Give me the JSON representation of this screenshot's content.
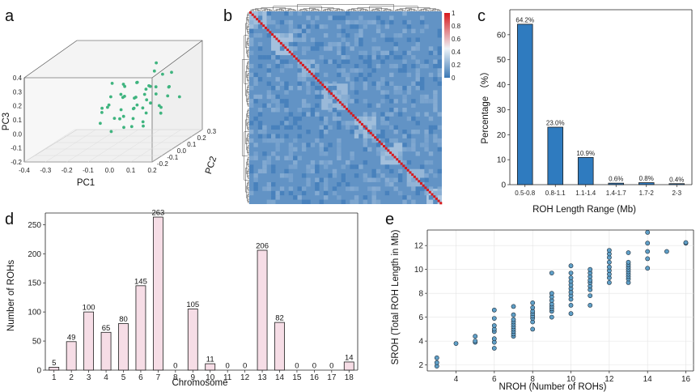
{
  "colors": {
    "pca_point": "#3fb47f",
    "bar_c": "#2f7bbf",
    "bar_d": "#f6dde6",
    "scatter_e": "#5f9fc7",
    "heat_low": "#3a78b6",
    "heat_mid": "#eef3f8",
    "heat_high": "#d7191c"
  },
  "panels": {
    "a": {
      "letter": "a"
    },
    "b": {
      "letter": "b"
    },
    "c": {
      "letter": "c"
    },
    "d": {
      "letter": "d"
    },
    "e": {
      "letter": "e"
    }
  },
  "chart_data": [
    {
      "panel": "a",
      "type": "scatter",
      "projection": "3d",
      "xlabel": "PC1",
      "ylabel": "PC2",
      "zlabel": "PC3",
      "x_ticks": [
        "-0.4",
        "-0.3",
        "-0.2",
        "-0.1",
        "0.0",
        "0.1",
        "0.2"
      ],
      "y_ticks": [
        "-0.2",
        "-0.1",
        "0.0",
        "0.1",
        "0.2",
        "0.3"
      ],
      "z_ticks": [
        "-0.2",
        "-0.1",
        "0.0",
        "0.1",
        "0.2",
        "0.3",
        "0.4"
      ],
      "xlim": [
        -0.4,
        0.2
      ],
      "ylim": [
        -0.2,
        0.3
      ],
      "zlim": [
        -0.2,
        0.4
      ],
      "points": [
        [
          -0.08,
          -0.05,
          0.12
        ],
        [
          -0.05,
          0.02,
          0.18
        ],
        [
          0.01,
          0.05,
          0.25
        ],
        [
          0.03,
          -0.02,
          0.1
        ],
        [
          -0.02,
          0.08,
          0.05
        ],
        [
          0.05,
          0.1,
          0.2
        ],
        [
          0.08,
          0.0,
          0.15
        ],
        [
          -0.1,
          -0.08,
          0.02
        ],
        [
          0.02,
          -0.1,
          0.0
        ],
        [
          0.06,
          0.12,
          0.3
        ],
        [
          -0.04,
          0.0,
          0.08
        ],
        [
          0.0,
          0.15,
          0.12
        ],
        [
          0.1,
          0.05,
          0.22
        ],
        [
          0.04,
          -0.05,
          0.04
        ],
        [
          -0.06,
          0.06,
          0.14
        ],
        [
          0.07,
          0.18,
          0.25
        ],
        [
          -0.12,
          -0.02,
          0.1
        ],
        [
          0.11,
          0.08,
          0.06
        ],
        [
          0.02,
          0.02,
          0.16
        ],
        [
          -0.03,
          -0.12,
          -0.02
        ],
        [
          0.09,
          -0.06,
          0.12
        ],
        [
          -0.07,
          0.1,
          0.2
        ],
        [
          0.05,
          0.03,
          -0.05
        ],
        [
          0.12,
          0.14,
          0.18
        ],
        [
          -0.01,
          -0.04,
          0.28
        ],
        [
          0.03,
          0.2,
          0.1
        ],
        [
          -0.09,
          0.04,
          0.0
        ],
        [
          0.06,
          -0.08,
          0.2
        ],
        [
          0.13,
          0.02,
          0.1
        ],
        [
          -0.02,
          0.12,
          0.22
        ],
        [
          0.0,
          -0.06,
          0.06
        ],
        [
          0.08,
          0.22,
          0.14
        ],
        [
          -0.05,
          -0.1,
          0.16
        ],
        [
          0.15,
          0.1,
          0.3
        ],
        [
          0.04,
          0.08,
          0.02
        ],
        [
          -0.11,
          0.06,
          0.24
        ],
        [
          0.02,
          -0.14,
          0.08
        ],
        [
          0.1,
          -0.02,
          0.26
        ],
        [
          -0.04,
          0.16,
          0.04
        ],
        [
          0.07,
          0.06,
          0.1
        ],
        [
          0.14,
          0.2,
          0.08
        ],
        [
          -0.08,
          0.12,
          0.12
        ],
        [
          0.01,
          0.0,
          -0.04
        ],
        [
          0.05,
          0.16,
          0.34
        ],
        [
          -0.06,
          -0.06,
          0.2
        ],
        [
          0.09,
          0.12,
          0.0
        ],
        [
          0.16,
          0.04,
          0.16
        ],
        [
          -0.13,
          0.0,
          0.06
        ],
        [
          0.03,
          0.1,
          0.18
        ],
        [
          0.11,
          -0.1,
          0.04
        ]
      ]
    },
    {
      "panel": "b",
      "type": "heatmap",
      "colorbar_ticks": [
        "1",
        "0.8",
        "0.6",
        "0.4",
        "0.2",
        "0"
      ],
      "colorbar_range": [
        0,
        1
      ],
      "diagonal_value": 1,
      "typical_offdiagonal": 0.1,
      "dendrogram": true
    },
    {
      "panel": "c",
      "type": "bar",
      "categories": [
        "0.5-0.8",
        "0.8-1.1",
        "1.1-1.4",
        "1.4-1.7",
        "1.7-2",
        "2-3"
      ],
      "values": [
        64.2,
        23.0,
        10.9,
        0.6,
        0.8,
        0.4
      ],
      "value_labels": [
        "64.2%",
        "23.0%",
        "10.9%",
        "0.6%",
        "0.8%",
        "0.4%"
      ],
      "xlabel": "ROH Length Range (Mb)",
      "ylabel": "Percentage （%）",
      "ylim": [
        0,
        70
      ],
      "yticks": [
        0,
        10,
        20,
        30,
        40,
        50,
        60
      ]
    },
    {
      "panel": "d",
      "type": "bar",
      "categories": [
        "1",
        "2",
        "3",
        "4",
        "5",
        "6",
        "7",
        "8",
        "9",
        "10",
        "11",
        "12",
        "13",
        "14",
        "15",
        "16",
        "17",
        "18"
      ],
      "values": [
        5,
        49,
        100,
        65,
        80,
        145,
        263,
        0,
        105,
        11,
        0,
        0,
        206,
        82,
        0,
        0,
        0,
        14
      ],
      "xlabel": "Chromosome",
      "ylabel": "Number of ROHs",
      "ylim": [
        0,
        270
      ],
      "yticks": [
        0,
        50,
        100,
        150,
        200,
        250
      ]
    },
    {
      "panel": "e",
      "type": "scatter",
      "xlabel": "NROH (Number of ROHs)",
      "ylabel": "SROH (Total ROH Length in Mb)",
      "xlim": [
        2.5,
        16.4
      ],
      "ylim": [
        1.5,
        13.3
      ],
      "xticks": [
        4,
        6,
        8,
        10,
        12,
        14,
        16
      ],
      "yticks": [
        2,
        4,
        6,
        8,
        10,
        12
      ],
      "grid": true,
      "points": [
        [
          3,
          1.9
        ],
        [
          3,
          2.2
        ],
        [
          3,
          2.6
        ],
        [
          4,
          3.8
        ],
        [
          5,
          3.9
        ],
        [
          5,
          4.0
        ],
        [
          5,
          4.4
        ],
        [
          6,
          3.4
        ],
        [
          6,
          3.9
        ],
        [
          6,
          4.2
        ],
        [
          6,
          4.8
        ],
        [
          6,
          5.0
        ],
        [
          6,
          5.3
        ],
        [
          6,
          5.9
        ],
        [
          6,
          6.6
        ],
        [
          7,
          4.4
        ],
        [
          7,
          4.6
        ],
        [
          7,
          4.8
        ],
        [
          7,
          5.0
        ],
        [
          7,
          5.2
        ],
        [
          7,
          5.4
        ],
        [
          7,
          5.6
        ],
        [
          7,
          5.8
        ],
        [
          7,
          6.2
        ],
        [
          7,
          6.9
        ],
        [
          8,
          5.0
        ],
        [
          8,
          5.6
        ],
        [
          8,
          5.9
        ],
        [
          8,
          6.1
        ],
        [
          8,
          6.3
        ],
        [
          8,
          6.5
        ],
        [
          8,
          6.8
        ],
        [
          8,
          7.2
        ],
        [
          9,
          6.0
        ],
        [
          9,
          6.5
        ],
        [
          9,
          6.7
        ],
        [
          9,
          6.9
        ],
        [
          9,
          7.1
        ],
        [
          9,
          7.4
        ],
        [
          9,
          7.7
        ],
        [
          9,
          8.0
        ],
        [
          9,
          9.7
        ],
        [
          10,
          6.3
        ],
        [
          10,
          7.0
        ],
        [
          10,
          7.5
        ],
        [
          10,
          7.8
        ],
        [
          10,
          8.1
        ],
        [
          10,
          8.4
        ],
        [
          10,
          8.7
        ],
        [
          10,
          9.0
        ],
        [
          10,
          9.3
        ],
        [
          10,
          9.7
        ],
        [
          10,
          10.3
        ],
        [
          11,
          7.0
        ],
        [
          11,
          7.8
        ],
        [
          11,
          8.3
        ],
        [
          11,
          8.6
        ],
        [
          11,
          8.9
        ],
        [
          11,
          9.1
        ],
        [
          11,
          9.4
        ],
        [
          11,
          9.7
        ],
        [
          11,
          10.0
        ],
        [
          12,
          8.9
        ],
        [
          12,
          9.3
        ],
        [
          12,
          9.6
        ],
        [
          12,
          9.9
        ],
        [
          12,
          10.2
        ],
        [
          12,
          10.6
        ],
        [
          12,
          11.0
        ],
        [
          12,
          11.3
        ],
        [
          12,
          11.6
        ],
        [
          13,
          8.9
        ],
        [
          13,
          9.2
        ],
        [
          13,
          9.4
        ],
        [
          13,
          9.6
        ],
        [
          13,
          9.8
        ],
        [
          13,
          10.0
        ],
        [
          13,
          10.2
        ],
        [
          13,
          10.4
        ],
        [
          13,
          10.6
        ],
        [
          13,
          11.4
        ],
        [
          14,
          10.1
        ],
        [
          14,
          10.9
        ],
        [
          14,
          11.5
        ],
        [
          14,
          12.2
        ],
        [
          14,
          13.1
        ],
        [
          15,
          11.5
        ],
        [
          16,
          12.2
        ],
        [
          16,
          12.25
        ]
      ]
    }
  ]
}
